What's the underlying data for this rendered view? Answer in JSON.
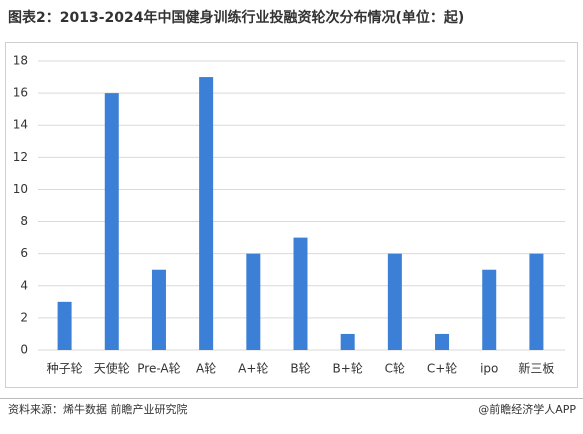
{
  "chart_data": {
    "type": "bar",
    "title": "图表2：2013-2024年中国健身训练行业投融资轮次分布情况(单位：起)",
    "categories": [
      "种子轮",
      "天使轮",
      "Pre-A轮",
      "A轮",
      "A+轮",
      "B轮",
      "B+轮",
      "C轮",
      "C+轮",
      "ipo",
      "新三板"
    ],
    "values": [
      3,
      16,
      5,
      17,
      6,
      7,
      1,
      6,
      1,
      5,
      6
    ],
    "color": "#3b7fd6",
    "ylim": [
      0,
      18
    ],
    "yticks": [
      0,
      2,
      4,
      6,
      8,
      10,
      12,
      14,
      16,
      18
    ],
    "grid": true,
    "source": "资料来源：烯牛数据 前瞻产业研究院",
    "credit": "@前瞻经济学人APP"
  }
}
